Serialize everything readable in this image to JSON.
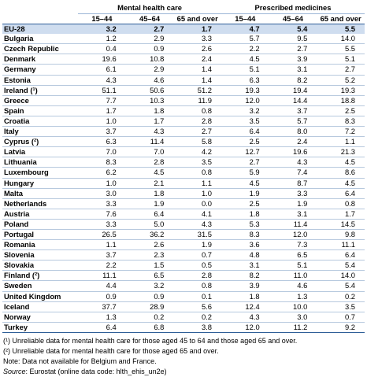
{
  "header": {
    "group_mental": "Mental health care",
    "group_medicines": "Prescribed medicines",
    "sub": [
      "15–44",
      "45–64",
      "65 and over",
      "15–44",
      "45–64",
      "65 and over"
    ]
  },
  "rows": [
    {
      "name": "EU-28",
      "v": [
        "3.2",
        "2.7",
        "1.7",
        "4.7",
        "5.4",
        "5.5"
      ]
    },
    {
      "name": "Bulgaria",
      "v": [
        "1.2",
        "2.9",
        "3.3",
        "5.7",
        "9.5",
        "14.0"
      ]
    },
    {
      "name": "Czech Republic",
      "v": [
        "0.4",
        "0.9",
        "2.6",
        "2.2",
        "2.7",
        "5.5"
      ]
    },
    {
      "name": "Denmark",
      "v": [
        "19.6",
        "10.8",
        "2.4",
        "4.5",
        "3.9",
        "5.1"
      ]
    },
    {
      "name": "Germany",
      "v": [
        "6.1",
        "2.9",
        "1.4",
        "5.1",
        "3.1",
        "2.7"
      ]
    },
    {
      "name": "Estonia",
      "v": [
        "4.3",
        "4.6",
        "1.4",
        "6.3",
        "8.2",
        "5.2"
      ]
    },
    {
      "name": "Ireland (¹)",
      "v": [
        "51.1",
        "50.6",
        "51.2",
        "19.3",
        "19.4",
        "19.3"
      ]
    },
    {
      "name": "Greece",
      "v": [
        "7.7",
        "10.3",
        "11.9",
        "12.0",
        "14.4",
        "18.8"
      ]
    },
    {
      "name": "Spain",
      "v": [
        "1.7",
        "1.8",
        "0.8",
        "3.2",
        "3.7",
        "2.5"
      ]
    },
    {
      "name": "Croatia",
      "v": [
        "1.0",
        "1.7",
        "2.8",
        "3.5",
        "5.7",
        "8.3"
      ]
    },
    {
      "name": "Italy",
      "v": [
        "3.7",
        "4.3",
        "2.7",
        "6.4",
        "8.0",
        "7.2"
      ]
    },
    {
      "name": "Cyprus (²)",
      "v": [
        "6.3",
        "11.4",
        "5.8",
        "2.5",
        "2.4",
        "1.1"
      ]
    },
    {
      "name": "Latvia",
      "v": [
        "7.0",
        "7.0",
        "4.2",
        "12.7",
        "19.6",
        "21.3"
      ]
    },
    {
      "name": "Lithuania",
      "v": [
        "8.3",
        "2.8",
        "3.5",
        "2.7",
        "4.3",
        "4.5"
      ]
    },
    {
      "name": "Luxembourg",
      "v": [
        "6.2",
        "4.5",
        "0.8",
        "5.9",
        "7.4",
        "8.6"
      ]
    },
    {
      "name": "Hungary",
      "v": [
        "1.0",
        "2.1",
        "1.1",
        "4.5",
        "8.7",
        "4.5"
      ]
    },
    {
      "name": "Malta",
      "v": [
        "3.0",
        "1.8",
        "1.0",
        "1.9",
        "3.3",
        "6.4"
      ]
    },
    {
      "name": "Netherlands",
      "v": [
        "3.3",
        "1.9",
        "0.0",
        "2.5",
        "1.9",
        "0.8"
      ]
    },
    {
      "name": "Austria",
      "v": [
        "7.6",
        "6.4",
        "4.1",
        "1.8",
        "3.1",
        "1.7"
      ]
    },
    {
      "name": "Poland",
      "v": [
        "3.3",
        "5.0",
        "4.3",
        "5.3",
        "11.4",
        "14.5"
      ]
    },
    {
      "name": "Portugal",
      "v": [
        "26.5",
        "36.2",
        "31.5",
        "8.3",
        "12.0",
        "9.8"
      ]
    },
    {
      "name": "Romania",
      "v": [
        "1.1",
        "2.6",
        "1.9",
        "3.6",
        "7.3",
        "11.1"
      ]
    },
    {
      "name": "Slovenia",
      "v": [
        "3.7",
        "2.3",
        "0.7",
        "4.8",
        "6.5",
        "6.4"
      ]
    },
    {
      "name": "Slovakia",
      "v": [
        "2.2",
        "1.5",
        "0.5",
        "3.1",
        "5.1",
        "5.4"
      ]
    },
    {
      "name": "Finland (²)",
      "v": [
        "11.1",
        "6.5",
        "2.8",
        "8.2",
        "11.0",
        "14.0"
      ]
    },
    {
      "name": "Sweden",
      "v": [
        "4.4",
        "3.2",
        "0.8",
        "3.9",
        "4.6",
        "5.4"
      ]
    },
    {
      "name": "United Kingdom",
      "v": [
        "0.9",
        "0.9",
        "0.1",
        "1.8",
        "1.3",
        "0.2"
      ]
    },
    {
      "name": "Iceland",
      "v": [
        "37.7",
        "28.9",
        "5.6",
        "12.4",
        "10.0",
        "3.5"
      ]
    },
    {
      "name": "Norway",
      "v": [
        "1.3",
        "0.2",
        "0.2",
        "4.3",
        "3.0",
        "0.7"
      ]
    },
    {
      "name": "Turkey",
      "v": [
        "6.4",
        "6.8",
        "3.8",
        "12.0",
        "11.2",
        "9.2"
      ]
    }
  ],
  "notes": {
    "n1": "(¹) Unreliable data for mental health care for those aged 45 to 64 and those aged 65 and over.",
    "n2": "(²) Unreliable data for mental health care for those aged 65 and over.",
    "n3": "Note: Data not available for Belgium and France.",
    "source_label": "Source",
    "source_text": ": Eurostat (online data code: hlth_ehis_un2e)"
  }
}
